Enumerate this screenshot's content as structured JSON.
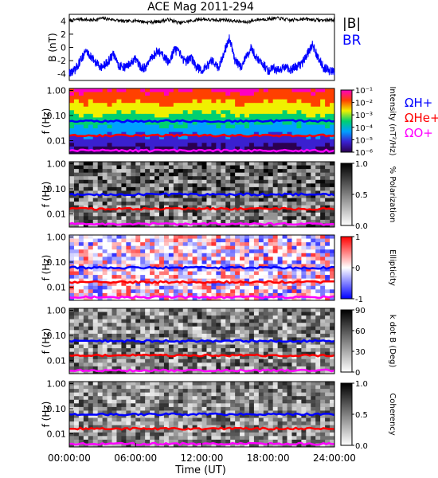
{
  "title": "ACE Mag 2011-294",
  "x_axis": {
    "label": "Time (UT)",
    "tick_labels": [
      "00:00:00",
      "06:00:00",
      "12:00:00",
      "18:00:00",
      "24:00:00"
    ],
    "tick_hours": [
      0,
      6,
      12,
      18,
      24
    ],
    "range_hours": [
      0,
      24
    ]
  },
  "chart_data": [
    {
      "type": "line",
      "panel": "magnetic-field",
      "ylabel": "B (nT)",
      "ylim": [
        -5,
        5
      ],
      "yticks": [
        -4,
        -2,
        0,
        2,
        4
      ],
      "legend": [
        "|B|",
        "BR"
      ],
      "legend_placement": "right",
      "series": [
        {
          "name": "|B|",
          "color": "#000000",
          "approximate_level_nT": 4.2,
          "x_hours": [
            0,
            1,
            2,
            3,
            4,
            5,
            6,
            7,
            8,
            9,
            10,
            11,
            12,
            13,
            14,
            15,
            16,
            17,
            18,
            19,
            20,
            21,
            22,
            23,
            24
          ],
          "values": [
            4.0,
            4.3,
            4.1,
            4.4,
            4.2,
            3.9,
            4.1,
            3.8,
            3.9,
            4.2,
            3.7,
            4.0,
            4.3,
            4.1,
            4.2,
            4.0,
            3.8,
            4.2,
            4.3,
            4.4,
            4.1,
            4.3,
            4.2,
            4.1,
            4.2
          ]
        },
        {
          "name": "BR",
          "color": "#0000ff",
          "x_hours": [
            0,
            0.5,
            1,
            1.5,
            2,
            2.5,
            3,
            3.5,
            4,
            4.5,
            5,
            5.5,
            6,
            6.5,
            7,
            7.5,
            8,
            8.5,
            9,
            9.5,
            10,
            10.5,
            11,
            11.5,
            12,
            12.5,
            13,
            13.5,
            14,
            14.5,
            15,
            15.5,
            16,
            16.5,
            17,
            17.5,
            18,
            18.5,
            19,
            19.5,
            20,
            20.5,
            21,
            21.5,
            22,
            22.5,
            23,
            23.5,
            24
          ],
          "values": [
            -3.8,
            -3.5,
            -2.0,
            -0.5,
            -1.5,
            -2.5,
            -3.0,
            -2.2,
            -1.0,
            -2.8,
            -3.0,
            -2.5,
            -1.8,
            -3.2,
            -2.9,
            -1.5,
            -0.5,
            -1.2,
            -2.4,
            -0.3,
            -1.0,
            -2.2,
            -1.5,
            -3.0,
            -3.5,
            -2.8,
            -1.8,
            -3.2,
            -0.8,
            1.5,
            -2.0,
            -3.0,
            -1.5,
            0.0,
            -1.8,
            -2.5,
            -3.5,
            -3.2,
            -3.6,
            -3.0,
            -3.4,
            -2.8,
            -2.6,
            -1.2,
            0.5,
            -1.5,
            -3.0,
            -3.5,
            -3.8
          ]
        }
      ]
    },
    {
      "type": "heatmap",
      "panel": "intensity",
      "ylabel": "f (Hz)",
      "yscale": "log",
      "ylim": [
        0.003,
        1.2
      ],
      "yticks": [
        0.01,
        0.1,
        1.0
      ],
      "ytick_labels": [
        "0.01",
        "0.10",
        "1.00"
      ],
      "colorbar": {
        "label": "Intensity (nT²/Hz)",
        "scale": "log",
        "tick_labels": [
          "10⁻⁶",
          "10⁻⁵",
          "10⁻⁴",
          "10⁻³",
          "10⁻²",
          "10⁻¹"
        ],
        "colors": [
          "#2b0050",
          "#3a20d0",
          "#00a0ff",
          "#00d070",
          "#f0f000",
          "#ff4000",
          "#ff00c0"
        ]
      },
      "legend": [
        "ΩH+",
        "ΩHe+",
        "ΩO+"
      ]
    },
    {
      "type": "heatmap",
      "panel": "polarization",
      "ylabel": "f (Hz)",
      "yscale": "log",
      "ylim": [
        0.003,
        1.2
      ],
      "yticks": [
        0.01,
        0.1,
        1.0
      ],
      "ytick_labels": [
        "0.01",
        "0.10",
        "1.00"
      ],
      "colorbar": {
        "label": "% Polarization",
        "range": [
          0,
          1.0
        ],
        "tick_labels": [
          "0.0",
          "0.5",
          "1.0"
        ],
        "colors": [
          "#ffffff",
          "#000000"
        ]
      }
    },
    {
      "type": "heatmap",
      "panel": "ellipticity",
      "ylabel": "f (Hz)",
      "yscale": "log",
      "ylim": [
        0.003,
        1.2
      ],
      "yticks": [
        0.01,
        0.1,
        1.0
      ],
      "ytick_labels": [
        "0.01",
        "0.10",
        "1.00"
      ],
      "colorbar": {
        "label": "Ellipticity",
        "range": [
          -1,
          1
        ],
        "tick_labels": [
          "-1",
          "0",
          "1"
        ],
        "colors": [
          "#0000ff",
          "#ffffff",
          "#ff0000"
        ]
      }
    },
    {
      "type": "heatmap",
      "panel": "wave-normal-angle",
      "ylabel": "f (Hz)",
      "yscale": "log",
      "ylim": [
        0.003,
        1.2
      ],
      "yticks": [
        0.01,
        0.1,
        1.0
      ],
      "ytick_labels": [
        "0.01",
        "0.10",
        "1.00"
      ],
      "colorbar": {
        "label": "k dot B (Deg)",
        "range": [
          0,
          90
        ],
        "tick_labels": [
          "0",
          "30",
          "60",
          "90"
        ],
        "colors": [
          "#ffffff",
          "#000000"
        ]
      }
    },
    {
      "type": "heatmap",
      "panel": "coherency",
      "ylabel": "f (Hz)",
      "yscale": "log",
      "ylim": [
        0.003,
        1.2
      ],
      "yticks": [
        0.01,
        0.1,
        1.0
      ],
      "ytick_labels": [
        "0.01",
        "0.10",
        "1.00"
      ],
      "colorbar": {
        "label": "Coherency",
        "range": [
          0,
          1.0
        ],
        "tick_labels": [
          "0.0",
          "0.5",
          "1.0"
        ],
        "colors": [
          "#ffffff",
          "#000000"
        ]
      }
    }
  ],
  "gyrofrequency_lines": [
    {
      "name": "ΩH+",
      "color": "#0000ff",
      "approximate_hz": 0.06
    },
    {
      "name": "ΩHe+",
      "color": "#ff0000",
      "approximate_hz": 0.016
    },
    {
      "name": "ΩO+",
      "color": "#ff00ff",
      "approximate_hz": 0.004
    }
  ],
  "colors": {
    "H": "#0000ff",
    "He": "#ff0000",
    "O": "#ff00ff",
    "B": "#000000"
  }
}
